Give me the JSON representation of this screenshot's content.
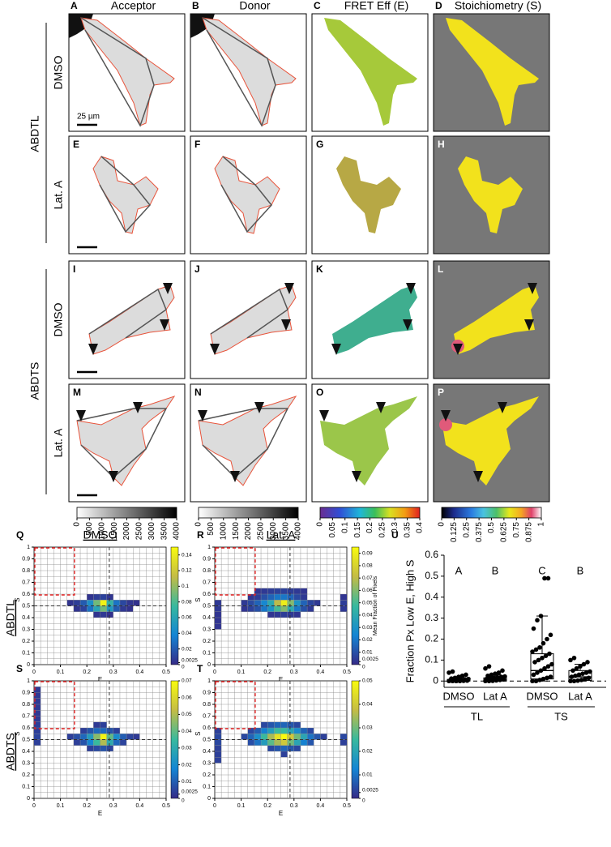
{
  "panels": {
    "letters": [
      "A",
      "B",
      "C",
      "D",
      "E",
      "F",
      "G",
      "H",
      "I",
      "J",
      "K",
      "L",
      "M",
      "N",
      "O",
      "P"
    ],
    "columns": [
      "Acceptor",
      "Donor",
      "FRET Eff (E)",
      "Stoichiometry (S)"
    ],
    "rows": [
      "DMSO",
      "Lat. A",
      "DMSO",
      "Lat. A"
    ],
    "constructs": [
      "ABDTL",
      "ABDTS"
    ],
    "scale_bar": "25 µm"
  },
  "colorbars": [
    {
      "ticks": [
        0,
        500,
        1000,
        1500,
        2000,
        2500,
        3000,
        3500,
        4000
      ]
    },
    {
      "ticks": [
        0,
        500,
        1000,
        1500,
        2000,
        2500,
        3000,
        3500,
        4000
      ]
    },
    {
      "ticks": [
        0,
        0.05,
        0.1,
        0.15,
        0.2,
        0.25,
        0.3,
        0.35,
        0.4
      ]
    },
    {
      "ticks": [
        0,
        0.125,
        0.25,
        0.375,
        0.5,
        0.625,
        0.75,
        0.875,
        1
      ]
    }
  ],
  "heatmaps": {
    "letters": [
      "Q",
      "R",
      "S",
      "T"
    ],
    "columns": [
      "DMSO",
      "Lat. A"
    ],
    "rows": [
      "ABDTL",
      "ABDTS"
    ],
    "xlabel": "E",
    "ylabel": "S",
    "xticks": [
      0,
      0.1,
      0.2,
      0.3,
      0.4,
      0.5
    ],
    "yticks": [
      0,
      0.1,
      0.2,
      0.3,
      0.4,
      0.5,
      0.6,
      0.7,
      0.8,
      0.9,
      1
    ],
    "bin_size": {
      "E": 0.025,
      "S": 0.05
    },
    "reference_lines": {
      "E": 0.285,
      "S": 0.5
    },
    "gate": {
      "E": [
        0,
        0.15
      ],
      "S": [
        0.6,
        1
      ]
    },
    "colorbar_label": "Mean Fraction of Pixels",
    "panels": [
      {
        "clim": [
          0,
          0.15
        ],
        "cticks": [
          0,
          0.0025,
          0.02,
          0.04,
          0.06,
          0.08,
          0.1,
          0.12,
          0.14
        ],
        "cells": [
          [
            0.125,
            0.5,
            0.004
          ],
          [
            0.15,
            0.5,
            0.008
          ],
          [
            0.175,
            0.5,
            0.02
          ],
          [
            0.2,
            0.5,
            0.045
          ],
          [
            0.225,
            0.5,
            0.09
          ],
          [
            0.25,
            0.5,
            0.145
          ],
          [
            0.275,
            0.5,
            0.07
          ],
          [
            0.3,
            0.5,
            0.03
          ],
          [
            0.325,
            0.5,
            0.012
          ],
          [
            0.35,
            0.5,
            0.005
          ],
          [
            0.375,
            0.5,
            0.003
          ],
          [
            0.15,
            0.45,
            0.004
          ],
          [
            0.175,
            0.45,
            0.01
          ],
          [
            0.2,
            0.45,
            0.03
          ],
          [
            0.225,
            0.45,
            0.06
          ],
          [
            0.25,
            0.45,
            0.09
          ],
          [
            0.275,
            0.45,
            0.05
          ],
          [
            0.3,
            0.45,
            0.02
          ],
          [
            0.325,
            0.45,
            0.006
          ],
          [
            0.35,
            0.45,
            0.003
          ],
          [
            0.2,
            0.55,
            0.004
          ],
          [
            0.225,
            0.55,
            0.008
          ],
          [
            0.25,
            0.55,
            0.01
          ],
          [
            0.275,
            0.55,
            0.005
          ],
          [
            0.225,
            0.4,
            0.004
          ],
          [
            0.25,
            0.4,
            0.006
          ],
          [
            0.275,
            0.4,
            0.003
          ]
        ]
      },
      {
        "clim": [
          0,
          0.095
        ],
        "cticks": [
          0,
          0.0025,
          0.01,
          0.02,
          0.03,
          0.04,
          0.05,
          0.06,
          0.07,
          0.08,
          0.09
        ],
        "cells": [
          [
            0.1,
            0.5,
            0.004
          ],
          [
            0.125,
            0.5,
            0.008
          ],
          [
            0.15,
            0.5,
            0.015
          ],
          [
            0.175,
            0.5,
            0.025
          ],
          [
            0.2,
            0.5,
            0.04
          ],
          [
            0.225,
            0.5,
            0.07
          ],
          [
            0.25,
            0.5,
            0.09
          ],
          [
            0.275,
            0.5,
            0.06
          ],
          [
            0.3,
            0.5,
            0.03
          ],
          [
            0.325,
            0.5,
            0.015
          ],
          [
            0.35,
            0.5,
            0.007
          ],
          [
            0.375,
            0.5,
            0.004
          ],
          [
            0.475,
            0.5,
            0.005
          ],
          [
            0.1,
            0.45,
            0.003
          ],
          [
            0.125,
            0.45,
            0.006
          ],
          [
            0.15,
            0.45,
            0.01
          ],
          [
            0.175,
            0.45,
            0.02
          ],
          [
            0.2,
            0.45,
            0.03
          ],
          [
            0.225,
            0.45,
            0.05
          ],
          [
            0.25,
            0.45,
            0.06
          ],
          [
            0.275,
            0.45,
            0.04
          ],
          [
            0.3,
            0.45,
            0.02
          ],
          [
            0.325,
            0.45,
            0.01
          ],
          [
            0.35,
            0.45,
            0.004
          ],
          [
            0.475,
            0.45,
            0.004
          ],
          [
            0.125,
            0.55,
            0.003
          ],
          [
            0.15,
            0.55,
            0.005
          ],
          [
            0.175,
            0.55,
            0.01
          ],
          [
            0.2,
            0.55,
            0.015
          ],
          [
            0.225,
            0.55,
            0.02
          ],
          [
            0.25,
            0.55,
            0.02
          ],
          [
            0.275,
            0.55,
            0.015
          ],
          [
            0.3,
            0.55,
            0.008
          ],
          [
            0.325,
            0.55,
            0.004
          ],
          [
            0.475,
            0.55,
            0.003
          ],
          [
            0.15,
            0.6,
            0.003
          ],
          [
            0.175,
            0.6,
            0.004
          ],
          [
            0.2,
            0.6,
            0.005
          ],
          [
            0.225,
            0.6,
            0.006
          ],
          [
            0.25,
            0.6,
            0.006
          ],
          [
            0.275,
            0.6,
            0.005
          ],
          [
            0.3,
            0.6,
            0.004
          ],
          [
            0.325,
            0.6,
            0.003
          ],
          [
            0.2,
            0.4,
            0.003
          ],
          [
            0.225,
            0.4,
            0.004
          ],
          [
            0.25,
            0.4,
            0.005
          ],
          [
            0.275,
            0.4,
            0.004
          ],
          [
            0.3,
            0.4,
            0.003
          ],
          [
            0,
            0.3,
            0.003
          ],
          [
            0,
            0.35,
            0.003
          ],
          [
            0,
            0.4,
            0.003
          ],
          [
            0,
            0.45,
            0.004
          ],
          [
            0,
            0.5,
            0.004
          ]
        ]
      },
      {
        "clim": [
          0,
          0.07
        ],
        "cticks": [
          0,
          0.0025,
          0.01,
          0.02,
          0.03,
          0.04,
          0.05,
          0.06,
          0.07
        ],
        "cells": [
          [
            0,
            0.45,
            0.004
          ],
          [
            0,
            0.5,
            0.005
          ],
          [
            0,
            0.55,
            0.004
          ],
          [
            0,
            0.6,
            0.004
          ],
          [
            0,
            0.65,
            0.003
          ],
          [
            0,
            0.7,
            0.003
          ],
          [
            0,
            0.75,
            0.003
          ],
          [
            0,
            0.8,
            0.003
          ],
          [
            0,
            0.85,
            0.003
          ],
          [
            0,
            0.9,
            0.003
          ],
          [
            0.125,
            0.5,
            0.004
          ],
          [
            0.15,
            0.5,
            0.007
          ],
          [
            0.175,
            0.5,
            0.012
          ],
          [
            0.2,
            0.5,
            0.025
          ],
          [
            0.225,
            0.5,
            0.045
          ],
          [
            0.25,
            0.5,
            0.068
          ],
          [
            0.275,
            0.5,
            0.04
          ],
          [
            0.3,
            0.5,
            0.02
          ],
          [
            0.325,
            0.5,
            0.01
          ],
          [
            0.35,
            0.5,
            0.005
          ],
          [
            0.375,
            0.5,
            0.003
          ],
          [
            0.15,
            0.45,
            0.004
          ],
          [
            0.175,
            0.45,
            0.008
          ],
          [
            0.2,
            0.45,
            0.018
          ],
          [
            0.225,
            0.45,
            0.035
          ],
          [
            0.25,
            0.45,
            0.05
          ],
          [
            0.275,
            0.45,
            0.03
          ],
          [
            0.3,
            0.45,
            0.012
          ],
          [
            0.325,
            0.45,
            0.005
          ],
          [
            0.175,
            0.55,
            0.004
          ],
          [
            0.2,
            0.55,
            0.008
          ],
          [
            0.225,
            0.55,
            0.012
          ],
          [
            0.25,
            0.55,
            0.012
          ],
          [
            0.275,
            0.55,
            0.008
          ],
          [
            0.3,
            0.55,
            0.004
          ],
          [
            0.2,
            0.4,
            0.004
          ],
          [
            0.225,
            0.4,
            0.006
          ],
          [
            0.25,
            0.4,
            0.008
          ],
          [
            0.275,
            0.4,
            0.005
          ],
          [
            0.225,
            0.6,
            0.003
          ],
          [
            0.25,
            0.6,
            0.004
          ]
        ]
      },
      {
        "clim": [
          0,
          0.05
        ],
        "cticks": [
          0,
          0.0025,
          0.01,
          0.02,
          0.03,
          0.04,
          0.05
        ],
        "cells": [
          [
            0,
            0.3,
            0.003
          ],
          [
            0,
            0.35,
            0.003
          ],
          [
            0,
            0.4,
            0.003
          ],
          [
            0,
            0.45,
            0.004
          ],
          [
            0,
            0.5,
            0.004
          ],
          [
            0,
            0.55,
            0.003
          ],
          [
            0.1,
            0.5,
            0.004
          ],
          [
            0.125,
            0.5,
            0.008
          ],
          [
            0.15,
            0.5,
            0.015
          ],
          [
            0.175,
            0.5,
            0.025
          ],
          [
            0.2,
            0.5,
            0.035
          ],
          [
            0.225,
            0.5,
            0.045
          ],
          [
            0.25,
            0.5,
            0.05
          ],
          [
            0.275,
            0.5,
            0.04
          ],
          [
            0.3,
            0.5,
            0.03
          ],
          [
            0.325,
            0.5,
            0.02
          ],
          [
            0.35,
            0.5,
            0.01
          ],
          [
            0.375,
            0.5,
            0.006
          ],
          [
            0.4,
            0.5,
            0.003
          ],
          [
            0.475,
            0.5,
            0.004
          ],
          [
            0.125,
            0.45,
            0.005
          ],
          [
            0.15,
            0.45,
            0.01
          ],
          [
            0.175,
            0.45,
            0.018
          ],
          [
            0.2,
            0.45,
            0.028
          ],
          [
            0.225,
            0.45,
            0.035
          ],
          [
            0.25,
            0.45,
            0.04
          ],
          [
            0.275,
            0.45,
            0.03
          ],
          [
            0.3,
            0.45,
            0.02
          ],
          [
            0.325,
            0.45,
            0.012
          ],
          [
            0.35,
            0.45,
            0.006
          ],
          [
            0.475,
            0.45,
            0.003
          ],
          [
            0.125,
            0.55,
            0.004
          ],
          [
            0.15,
            0.55,
            0.007
          ],
          [
            0.175,
            0.55,
            0.012
          ],
          [
            0.2,
            0.55,
            0.018
          ],
          [
            0.225,
            0.55,
            0.025
          ],
          [
            0.25,
            0.55,
            0.025
          ],
          [
            0.275,
            0.55,
            0.02
          ],
          [
            0.3,
            0.55,
            0.014
          ],
          [
            0.325,
            0.55,
            0.008
          ],
          [
            0.35,
            0.55,
            0.004
          ],
          [
            0.175,
            0.6,
            0.004
          ],
          [
            0.2,
            0.6,
            0.006
          ],
          [
            0.225,
            0.6,
            0.008
          ],
          [
            0.25,
            0.6,
            0.008
          ],
          [
            0.275,
            0.6,
            0.006
          ],
          [
            0.3,
            0.6,
            0.004
          ],
          [
            0.2,
            0.4,
            0.004
          ],
          [
            0.225,
            0.4,
            0.006
          ],
          [
            0.25,
            0.4,
            0.008
          ],
          [
            0.275,
            0.4,
            0.006
          ],
          [
            0.3,
            0.4,
            0.004
          ],
          [
            0.25,
            0.35,
            0.003
          ]
        ]
      }
    ]
  },
  "chart_data": {
    "type": "box",
    "letter": "U",
    "ylabel": "Fraction Px Low E, High S",
    "ylim": [
      -0.03,
      0.6
    ],
    "yticks": [
      0,
      0.1,
      0.2,
      0.3,
      0.4,
      0.5,
      0.6
    ],
    "baseline": 0,
    "categories": [
      "DMSO",
      "Lat A",
      "DMSO",
      "Lat A"
    ],
    "groups": [
      "TL",
      "TS"
    ],
    "significance": [
      "A",
      "B",
      "C",
      "B"
    ],
    "points": [
      [
        0,
        0,
        0,
        0,
        0.001,
        0.002,
        0.003,
        0.004,
        0.005,
        0.006,
        0.008,
        0.01,
        0.012,
        0.015,
        0.02,
        0.025,
        0.03,
        0.04,
        0.045,
        0
      ],
      [
        0,
        0,
        0.001,
        0.003,
        0.005,
        0.008,
        0.01,
        0.012,
        0.015,
        0.018,
        0.02,
        0.022,
        0.025,
        0.03,
        0.035,
        0.04,
        0.05,
        0.06,
        0.07
      ],
      [
        0,
        0,
        0.005,
        0.01,
        0.015,
        0.02,
        0.03,
        0.04,
        0.05,
        0.06,
        0.07,
        0.08,
        0.09,
        0.1,
        0.11,
        0.12,
        0.13,
        0.14,
        0.15,
        0.16,
        0.18,
        0.2,
        0.22,
        0.25,
        0.29,
        0.31,
        0.49,
        0.49
      ],
      [
        0,
        0,
        0.002,
        0.005,
        0.01,
        0.015,
        0.02,
        0.025,
        0.03,
        0.035,
        0.04,
        0.045,
        0.05,
        0.06,
        0.07,
        0.08,
        0.09,
        0.1,
        0.11
      ]
    ],
    "boxes": [
      {
        "low": 0,
        "q1": 0,
        "median": 0.002,
        "q3": 0.008,
        "high": 0.02
      },
      {
        "low": 0,
        "q1": 0,
        "median": 0.005,
        "q3": 0.015,
        "high": 0.03
      },
      {
        "low": 0,
        "q1": 0.01,
        "median": 0.05,
        "q3": 0.13,
        "high": 0.31
      },
      {
        "low": 0,
        "q1": 0.003,
        "median": 0.02,
        "q3": 0.05,
        "high": 0.08
      }
    ]
  }
}
